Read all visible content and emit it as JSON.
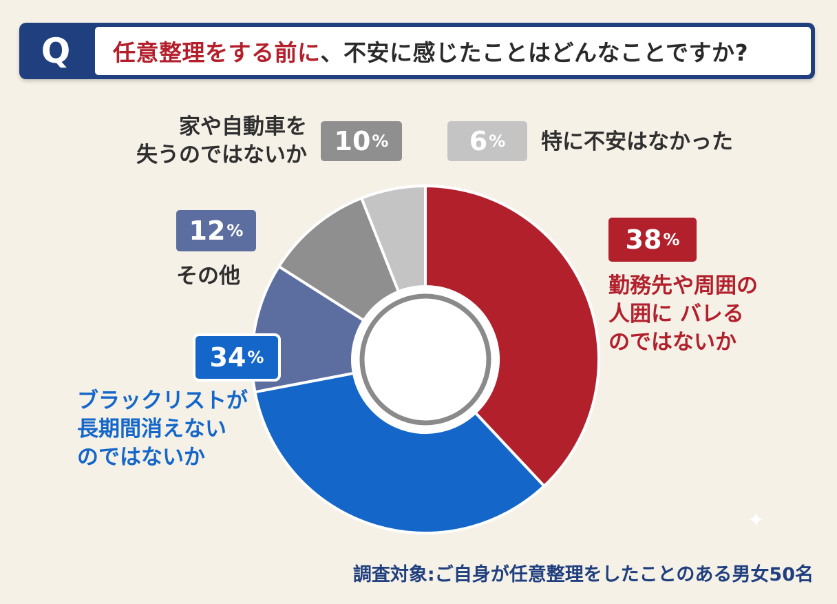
{
  "header": {
    "q_mark": "Q",
    "title_red": "任意整理をする前に",
    "title_rest": "、不安に感じたことはどんなことですか?"
  },
  "chart_data": {
    "type": "pie",
    "donut": true,
    "title": "任意整理をする前に、不安に感じたことはどんなことですか?",
    "slices": [
      {
        "label": [
          "勤務先や周囲の",
          "人囲に バレる",
          "のではないか"
        ],
        "value": 38,
        "value_text": "38",
        "color": "#b2202c",
        "text_color": "#b2202c"
      },
      {
        "label": [
          "ブラックリストが",
          "長期間消えない",
          "のではないか"
        ],
        "value": 34,
        "value_text": "34",
        "color": "#1467c9",
        "text_color": "#1467c9"
      },
      {
        "label": [
          "その他"
        ],
        "value": 12,
        "value_text": "12",
        "color": "#5b6e9f",
        "text_color": "#2f2f2f"
      },
      {
        "label": [
          "家や自動車を",
          "失うのではないか"
        ],
        "value": 10,
        "value_text": "10",
        "color": "#8f8f8f",
        "text_color": "#2f2f2f"
      },
      {
        "label": [
          "特に不安はなかった"
        ],
        "value": 6,
        "value_text": "6",
        "color": "#c4c4c4",
        "text_color": "#2f2f2f"
      }
    ],
    "percent_sign": "%",
    "start": "12 o'clock",
    "direction": "clockwise",
    "center_ring_color": "#8a8a8a"
  },
  "footer": {
    "note": "調査対象:ご自身が任意整理をしたことのある男女50名"
  }
}
